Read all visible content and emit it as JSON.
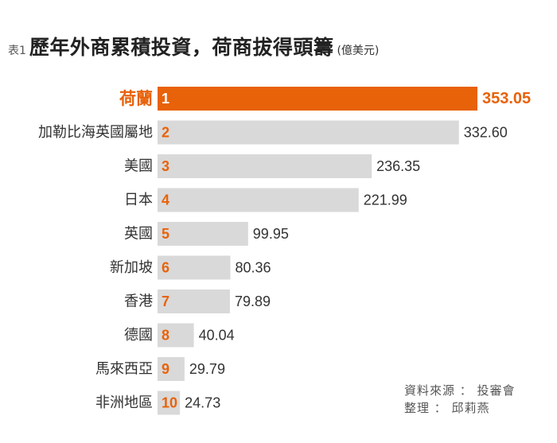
{
  "header": {
    "table_label": "表1",
    "title": "歷年外商累積投資，荷商拔得頭籌",
    "unit": "(億美元)"
  },
  "colors": {
    "highlight": "#e8620a",
    "bar": "#d9d9d9",
    "rank_text": "#e8620a",
    "text": "#333333"
  },
  "chart_data": {
    "type": "bar",
    "orientation": "horizontal",
    "title": "歷年外商累積投資，荷商拔得頭籌",
    "unit": "(億美元)",
    "categories": [
      "荷蘭",
      "加勒比海英國屬地",
      "美國",
      "日本",
      "英國",
      "新加坡",
      "香港",
      "德國",
      "馬來西亞",
      "非洲地區"
    ],
    "ranks": [
      "1",
      "2",
      "3",
      "4",
      "5",
      "6",
      "7",
      "8",
      "9",
      "10"
    ],
    "values": [
      353.05,
      332.6,
      236.35,
      221.99,
      99.95,
      80.36,
      79.89,
      40.04,
      29.79,
      24.73
    ],
    "value_labels": [
      "353.05",
      "332.60",
      "236.35",
      "221.99",
      "99.95",
      "80.36",
      "79.89",
      "40.04",
      "29.79",
      "24.73"
    ],
    "highlight_index": 0,
    "xlim": [
      0,
      353.05
    ],
    "grid": false,
    "legend": "none"
  },
  "source": {
    "line1": "資料來源 ： 投審會",
    "line2": "整理 ： 邱莉燕"
  }
}
